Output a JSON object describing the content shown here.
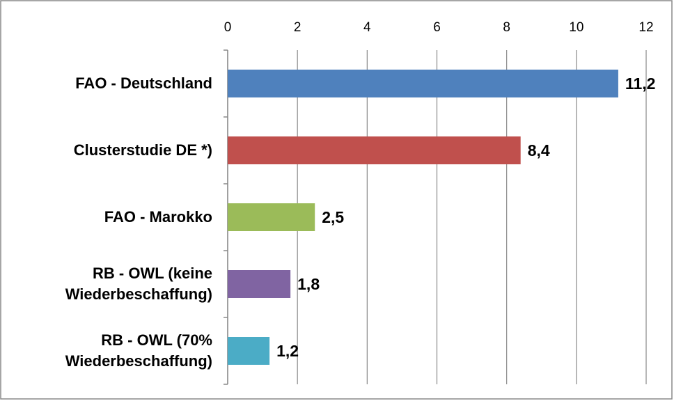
{
  "chart_data": {
    "type": "barh",
    "categories": [
      "FAO - Deutschland",
      "Clusterstudie DE *)",
      "FAO - Marokko",
      "RB - OWL (keine Wiederbeschaffung)",
      "RB - OWL (70% Wiederbeschaffung)"
    ],
    "values": [
      11.2,
      8.4,
      2.5,
      1.8,
      1.2
    ],
    "value_labels": [
      "11,2",
      "8,4",
      "2,5",
      "1,8",
      "1,2"
    ],
    "colors": [
      "#4f81bd",
      "#c0504d",
      "#9bbb59",
      "#8064a2",
      "#4bacc6"
    ],
    "xlim": [
      0,
      12
    ],
    "xticks": [
      0,
      2,
      4,
      6,
      8,
      10,
      12
    ],
    "grid": true
  }
}
